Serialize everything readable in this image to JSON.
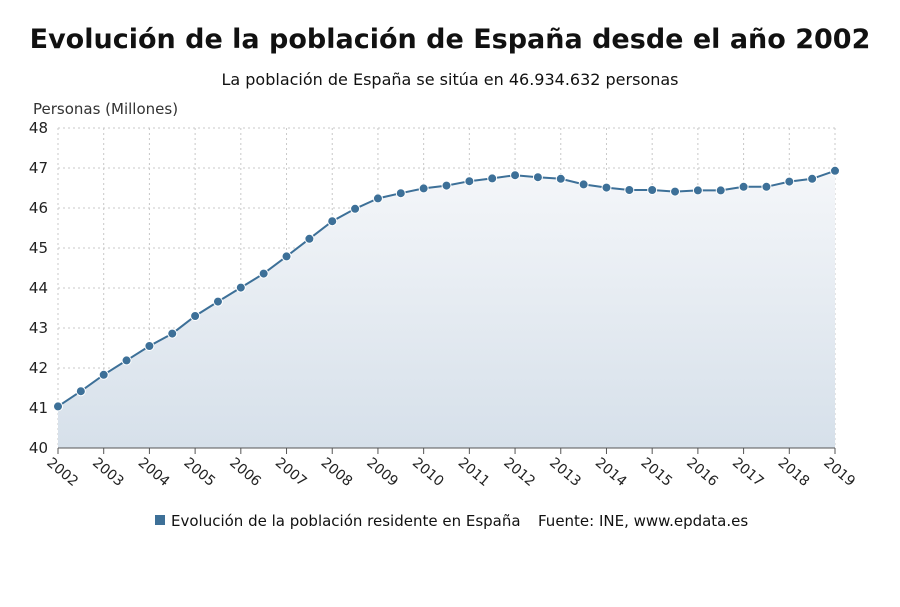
{
  "colors": {
    "series": "#3d7098",
    "area_top": "#f4f6f9",
    "area_bottom": "#d6e0ea",
    "grid": "#c8c8c8"
  },
  "legend": {
    "label": "Evolución de la población residente en España",
    "source": "Fuente: INE, www.epdata.es"
  },
  "chart_data": {
    "type": "area",
    "title": "Evolución de la población de España desde el año 2002",
    "subtitle": "La población de España se sitúa en 46.934.632 personas",
    "ylabel": "Personas (Millones)",
    "xlabel": "",
    "ylim": [
      40,
      48
    ],
    "y_ticks": [
      "40",
      "41",
      "42",
      "43",
      "44",
      "45",
      "46",
      "47",
      "48"
    ],
    "x_ticks": [
      "2002",
      "2003",
      "2004",
      "2005",
      "2006",
      "2007",
      "2008",
      "2009",
      "2010",
      "2011",
      "2012",
      "2013",
      "2014",
      "2015",
      "2016",
      "2017",
      "2018",
      "2019"
    ],
    "grid": true,
    "legend_position": "bottom",
    "series": [
      {
        "name": "Evolución de la población residente en España",
        "x": [
          2002.0,
          2002.5,
          2003.0,
          2003.5,
          2004.0,
          2004.5,
          2005.0,
          2005.5,
          2006.0,
          2006.5,
          2007.0,
          2007.5,
          2008.0,
          2008.5,
          2009.0,
          2009.5,
          2010.0,
          2010.5,
          2011.0,
          2011.5,
          2012.0,
          2012.5,
          2013.0,
          2013.5,
          2014.0,
          2014.5,
          2015.0,
          2015.5,
          2016.0,
          2016.5,
          2017.0,
          2017.5,
          2018.0,
          2018.5,
          2019.0
        ],
        "values": [
          41.04,
          41.42,
          41.83,
          42.19,
          42.55,
          42.86,
          43.3,
          43.66,
          44.01,
          44.36,
          44.79,
          45.23,
          45.67,
          45.98,
          46.24,
          46.37,
          46.49,
          46.56,
          46.67,
          46.74,
          46.82,
          46.77,
          46.73,
          46.59,
          46.51,
          46.45,
          46.45,
          46.41,
          46.44,
          46.44,
          46.53,
          46.53,
          46.66,
          46.73,
          46.93
        ]
      }
    ]
  }
}
